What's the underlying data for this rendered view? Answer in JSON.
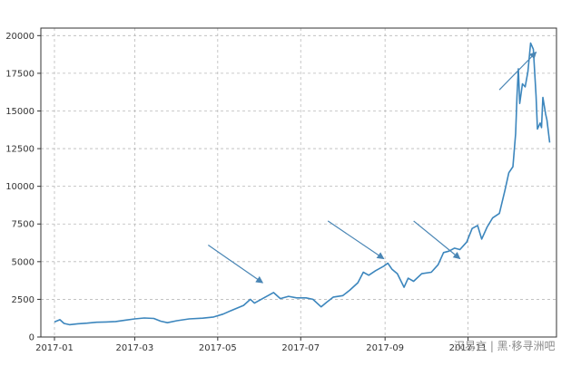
{
  "chart_data": {
    "type": "line",
    "x_ticks": [
      "2017-01",
      "2017-03",
      "2017-05",
      "2017-07",
      "2017-09",
      "2017-11"
    ],
    "y_ticks": [
      "0",
      "2500",
      "5000",
      "7500",
      "10000",
      "12500",
      "15000",
      "17500",
      "20000"
    ],
    "ylim": [
      0,
      20500
    ],
    "xlim": [
      "2016-12-22",
      "2018-01-05"
    ],
    "grid": true,
    "series": [
      {
        "color": "#3c86bd",
        "points": [
          [
            "2017-01-01",
            1000
          ],
          [
            "2017-01-05",
            1150
          ],
          [
            "2017-01-08",
            900
          ],
          [
            "2017-01-12",
            820
          ],
          [
            "2017-01-18",
            880
          ],
          [
            "2017-01-25",
            920
          ],
          [
            "2017-02-01",
            980
          ],
          [
            "2017-02-08",
            1000
          ],
          [
            "2017-02-15",
            1030
          ],
          [
            "2017-02-22",
            1120
          ],
          [
            "2017-03-01",
            1200
          ],
          [
            "2017-03-08",
            1260
          ],
          [
            "2017-03-15",
            1230
          ],
          [
            "2017-03-20",
            1050
          ],
          [
            "2017-03-25",
            950
          ],
          [
            "2017-04-01",
            1080
          ],
          [
            "2017-04-10",
            1200
          ],
          [
            "2017-04-20",
            1250
          ],
          [
            "2017-04-28",
            1330
          ],
          [
            "2017-05-05",
            1520
          ],
          [
            "2017-05-12",
            1800
          ],
          [
            "2017-05-20",
            2100
          ],
          [
            "2017-05-25",
            2500
          ],
          [
            "2017-05-28",
            2250
          ],
          [
            "2017-06-03",
            2550
          ],
          [
            "2017-06-08",
            2800
          ],
          [
            "2017-06-11",
            2950
          ],
          [
            "2017-06-16",
            2550
          ],
          [
            "2017-06-22",
            2700
          ],
          [
            "2017-06-28",
            2600
          ],
          [
            "2017-07-05",
            2600
          ],
          [
            "2017-07-10",
            2500
          ],
          [
            "2017-07-16",
            2000
          ],
          [
            "2017-07-20",
            2300
          ],
          [
            "2017-07-25",
            2650
          ],
          [
            "2017-08-01",
            2750
          ],
          [
            "2017-08-06",
            3100
          ],
          [
            "2017-08-12",
            3600
          ],
          [
            "2017-08-16",
            4300
          ],
          [
            "2017-08-20",
            4100
          ],
          [
            "2017-08-25",
            4400
          ],
          [
            "2017-08-31",
            4700
          ],
          [
            "2017-09-03",
            4900
          ],
          [
            "2017-09-06",
            4500
          ],
          [
            "2017-09-10",
            4200
          ],
          [
            "2017-09-15",
            3300
          ],
          [
            "2017-09-18",
            3900
          ],
          [
            "2017-09-22",
            3700
          ],
          [
            "2017-09-28",
            4200
          ],
          [
            "2017-10-05",
            4300
          ],
          [
            "2017-10-10",
            4800
          ],
          [
            "2017-10-14",
            5600
          ],
          [
            "2017-10-18",
            5700
          ],
          [
            "2017-10-22",
            5900
          ],
          [
            "2017-10-26",
            5800
          ],
          [
            "2017-10-31",
            6300
          ],
          [
            "2017-11-04",
            7200
          ],
          [
            "2017-11-08",
            7400
          ],
          [
            "2017-11-11",
            6500
          ],
          [
            "2017-11-15",
            7300
          ],
          [
            "2017-11-19",
            7900
          ],
          [
            "2017-11-24",
            8200
          ],
          [
            "2017-11-28",
            9700
          ],
          [
            "2017-12-01",
            10900
          ],
          [
            "2017-12-04",
            11300
          ],
          [
            "2017-12-06",
            13500
          ],
          [
            "2017-12-07",
            16000
          ],
          [
            "2017-12-08",
            17800
          ],
          [
            "2017-12-09",
            15500
          ],
          [
            "2017-12-11",
            16800
          ],
          [
            "2017-12-13",
            16600
          ],
          [
            "2017-12-15",
            17600
          ],
          [
            "2017-12-17",
            19500
          ],
          [
            "2017-12-19",
            19100
          ],
          [
            "2017-12-21",
            16000
          ],
          [
            "2017-12-22",
            13800
          ],
          [
            "2017-12-24",
            14200
          ],
          [
            "2017-12-25",
            13900
          ],
          [
            "2017-12-26",
            15900
          ],
          [
            "2017-12-28",
            14800
          ],
          [
            "2017-12-29",
            14400
          ],
          [
            "2017-12-31",
            12900
          ]
        ]
      }
    ],
    "annotations": [
      {
        "type": "arrow",
        "from": [
          "2017-04-24",
          6100
        ],
        "to": [
          "2017-06-03",
          3600
        ]
      },
      {
        "type": "arrow",
        "from": [
          "2017-07-21",
          7700
        ],
        "to": [
          "2017-08-31",
          5200
        ]
      },
      {
        "type": "arrow",
        "from": [
          "2017-09-22",
          7700
        ],
        "to": [
          "2017-10-26",
          5200
        ]
      },
      {
        "type": "arrow",
        "from": [
          "2017-11-24",
          16400
        ],
        "to": [
          "2017-12-21",
          18900
        ]
      }
    ],
    "watermark": "汉易言 | 黑·移寻洲吧"
  }
}
